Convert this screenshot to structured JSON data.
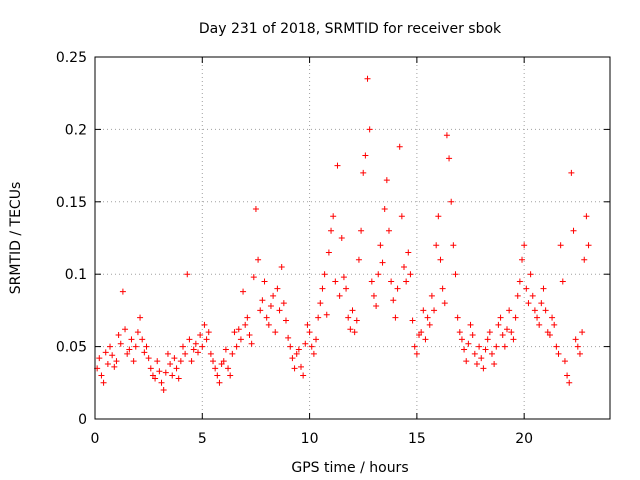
{
  "chart_data": {
    "type": "scatter",
    "title": "Day 231 of 2018, SRMTID for receiver sbok",
    "xlabel": "GPS time / hours",
    "ylabel": "SRMTID / TECUs",
    "xlim": [
      0,
      24
    ],
    "ylim": [
      0,
      0.25
    ],
    "grid": true,
    "legend": "none",
    "marker": "+",
    "xticks": [
      0,
      5,
      10,
      15,
      20
    ],
    "xtick_labels": [
      "0",
      "5",
      "10",
      "15",
      "20"
    ],
    "yticks": [
      0,
      0.05,
      0.1,
      0.15,
      0.2,
      0.25
    ],
    "ytick_labels": [
      "0",
      "0.05",
      "0.1",
      "0.15",
      "0.2",
      "0.25"
    ],
    "colors": {
      "series": "#ff0000",
      "grid": "#a0a0a0",
      "axis": "#000000"
    },
    "series": [
      {
        "name": "SRMTID",
        "points": [
          [
            0.1,
            0.035
          ],
          [
            0.2,
            0.042
          ],
          [
            0.3,
            0.03
          ],
          [
            0.4,
            0.025
          ],
          [
            0.5,
            0.046
          ],
          [
            0.6,
            0.038
          ],
          [
            0.7,
            0.05
          ],
          [
            0.8,
            0.044
          ],
          [
            0.9,
            0.036
          ],
          [
            1.0,
            0.04
          ],
          [
            1.1,
            0.058
          ],
          [
            1.2,
            0.052
          ],
          [
            1.3,
            0.088
          ],
          [
            1.4,
            0.062
          ],
          [
            1.5,
            0.045
          ],
          [
            1.6,
            0.048
          ],
          [
            1.7,
            0.055
          ],
          [
            1.8,
            0.04
          ],
          [
            1.9,
            0.05
          ],
          [
            2.0,
            0.06
          ],
          [
            2.1,
            0.07
          ],
          [
            2.2,
            0.055
          ],
          [
            2.3,
            0.046
          ],
          [
            2.4,
            0.05
          ],
          [
            2.5,
            0.042
          ],
          [
            2.6,
            0.035
          ],
          [
            2.7,
            0.03
          ],
          [
            2.8,
            0.028
          ],
          [
            2.9,
            0.04
          ],
          [
            3.0,
            0.033
          ],
          [
            3.1,
            0.025
          ],
          [
            3.2,
            0.02
          ],
          [
            3.3,
            0.032
          ],
          [
            3.4,
            0.045
          ],
          [
            3.5,
            0.038
          ],
          [
            3.6,
            0.03
          ],
          [
            3.7,
            0.042
          ],
          [
            3.8,
            0.035
          ],
          [
            3.9,
            0.028
          ],
          [
            4.0,
            0.04
          ],
          [
            4.1,
            0.05
          ],
          [
            4.2,
            0.045
          ],
          [
            4.3,
            0.1
          ],
          [
            4.4,
            0.055
          ],
          [
            4.5,
            0.04
          ],
          [
            4.6,
            0.048
          ],
          [
            4.7,
            0.052
          ],
          [
            4.8,
            0.046
          ],
          [
            4.9,
            0.058
          ],
          [
            5.0,
            0.05
          ],
          [
            5.1,
            0.065
          ],
          [
            5.2,
            0.055
          ],
          [
            5.3,
            0.06
          ],
          [
            5.4,
            0.045
          ],
          [
            5.5,
            0.04
          ],
          [
            5.6,
            0.035
          ],
          [
            5.7,
            0.03
          ],
          [
            5.8,
            0.025
          ],
          [
            5.9,
            0.038
          ],
          [
            6.0,
            0.04
          ],
          [
            6.1,
            0.048
          ],
          [
            6.2,
            0.035
          ],
          [
            6.3,
            0.03
          ],
          [
            6.4,
            0.045
          ],
          [
            6.5,
            0.06
          ],
          [
            6.6,
            0.05
          ],
          [
            6.7,
            0.062
          ],
          [
            6.8,
            0.055
          ],
          [
            6.9,
            0.088
          ],
          [
            7.0,
            0.065
          ],
          [
            7.1,
            0.07
          ],
          [
            7.2,
            0.058
          ],
          [
            7.3,
            0.052
          ],
          [
            7.4,
            0.098
          ],
          [
            7.5,
            0.145
          ],
          [
            7.6,
            0.11
          ],
          [
            7.7,
            0.075
          ],
          [
            7.8,
            0.082
          ],
          [
            7.9,
            0.095
          ],
          [
            8.0,
            0.07
          ],
          [
            8.1,
            0.065
          ],
          [
            8.2,
            0.078
          ],
          [
            8.3,
            0.085
          ],
          [
            8.4,
            0.06
          ],
          [
            8.5,
            0.09
          ],
          [
            8.6,
            0.075
          ],
          [
            8.7,
            0.105
          ],
          [
            8.8,
            0.08
          ],
          [
            8.9,
            0.068
          ],
          [
            9.0,
            0.056
          ],
          [
            9.1,
            0.05
          ],
          [
            9.2,
            0.042
          ],
          [
            9.3,
            0.035
          ],
          [
            9.4,
            0.045
          ],
          [
            9.5,
            0.048
          ],
          [
            9.6,
            0.036
          ],
          [
            9.7,
            0.03
          ],
          [
            9.8,
            0.052
          ],
          [
            9.9,
            0.065
          ],
          [
            10.0,
            0.06
          ],
          [
            10.1,
            0.05
          ],
          [
            10.2,
            0.045
          ],
          [
            10.3,
            0.055
          ],
          [
            10.4,
            0.07
          ],
          [
            10.5,
            0.08
          ],
          [
            10.6,
            0.09
          ],
          [
            10.7,
            0.1
          ],
          [
            10.8,
            0.072
          ],
          [
            10.9,
            0.115
          ],
          [
            11.0,
            0.13
          ],
          [
            11.1,
            0.14
          ],
          [
            11.2,
            0.095
          ],
          [
            11.3,
            0.175
          ],
          [
            11.4,
            0.085
          ],
          [
            11.5,
            0.125
          ],
          [
            11.6,
            0.098
          ],
          [
            11.7,
            0.09
          ],
          [
            11.8,
            0.07
          ],
          [
            11.9,
            0.062
          ],
          [
            12.0,
            0.075
          ],
          [
            12.1,
            0.06
          ],
          [
            12.2,
            0.068
          ],
          [
            12.3,
            0.11
          ],
          [
            12.4,
            0.13
          ],
          [
            12.5,
            0.17
          ],
          [
            12.6,
            0.182
          ],
          [
            12.7,
            0.235
          ],
          [
            12.8,
            0.2
          ],
          [
            12.9,
            0.095
          ],
          [
            13.0,
            0.085
          ],
          [
            13.1,
            0.078
          ],
          [
            13.2,
            0.1
          ],
          [
            13.3,
            0.12
          ],
          [
            13.4,
            0.108
          ],
          [
            13.5,
            0.145
          ],
          [
            13.6,
            0.165
          ],
          [
            13.7,
            0.13
          ],
          [
            13.8,
            0.095
          ],
          [
            13.9,
            0.082
          ],
          [
            14.0,
            0.07
          ],
          [
            14.1,
            0.09
          ],
          [
            14.2,
            0.188
          ],
          [
            14.3,
            0.14
          ],
          [
            14.4,
            0.105
          ],
          [
            14.5,
            0.095
          ],
          [
            14.6,
            0.115
          ],
          [
            14.7,
            0.1
          ],
          [
            14.8,
            0.068
          ],
          [
            14.9,
            0.05
          ],
          [
            15.0,
            0.045
          ],
          [
            15.1,
            0.058
          ],
          [
            15.2,
            0.06
          ],
          [
            15.3,
            0.075
          ],
          [
            15.4,
            0.055
          ],
          [
            15.5,
            0.07
          ],
          [
            15.6,
            0.065
          ],
          [
            15.7,
            0.085
          ],
          [
            15.8,
            0.075
          ],
          [
            15.9,
            0.12
          ],
          [
            16.0,
            0.14
          ],
          [
            16.1,
            0.11
          ],
          [
            16.2,
            0.09
          ],
          [
            16.3,
            0.08
          ],
          [
            16.4,
            0.196
          ],
          [
            16.5,
            0.18
          ],
          [
            16.6,
            0.15
          ],
          [
            16.7,
            0.12
          ],
          [
            16.8,
            0.1
          ],
          [
            16.9,
            0.07
          ],
          [
            17.0,
            0.06
          ],
          [
            17.1,
            0.055
          ],
          [
            17.2,
            0.048
          ],
          [
            17.3,
            0.04
          ],
          [
            17.4,
            0.052
          ],
          [
            17.5,
            0.065
          ],
          [
            17.6,
            0.058
          ],
          [
            17.7,
            0.045
          ],
          [
            17.8,
            0.038
          ],
          [
            17.9,
            0.05
          ],
          [
            18.0,
            0.042
          ],
          [
            18.1,
            0.035
          ],
          [
            18.2,
            0.048
          ],
          [
            18.3,
            0.055
          ],
          [
            18.4,
            0.06
          ],
          [
            18.5,
            0.045
          ],
          [
            18.6,
            0.038
          ],
          [
            18.7,
            0.05
          ],
          [
            18.8,
            0.065
          ],
          [
            18.9,
            0.07
          ],
          [
            19.0,
            0.058
          ],
          [
            19.1,
            0.05
          ],
          [
            19.2,
            0.062
          ],
          [
            19.3,
            0.075
          ],
          [
            19.4,
            0.06
          ],
          [
            19.5,
            0.055
          ],
          [
            19.6,
            0.07
          ],
          [
            19.7,
            0.085
          ],
          [
            19.8,
            0.095
          ],
          [
            19.9,
            0.11
          ],
          [
            20.0,
            0.12
          ],
          [
            20.1,
            0.09
          ],
          [
            20.2,
            0.08
          ],
          [
            20.3,
            0.1
          ],
          [
            20.4,
            0.085
          ],
          [
            20.5,
            0.075
          ],
          [
            20.6,
            0.07
          ],
          [
            20.7,
            0.065
          ],
          [
            20.8,
            0.08
          ],
          [
            20.9,
            0.09
          ],
          [
            21.0,
            0.075
          ],
          [
            21.1,
            0.06
          ],
          [
            21.2,
            0.058
          ],
          [
            21.3,
            0.07
          ],
          [
            21.4,
            0.065
          ],
          [
            21.5,
            0.05
          ],
          [
            21.6,
            0.045
          ],
          [
            21.7,
            0.12
          ],
          [
            21.8,
            0.095
          ],
          [
            21.9,
            0.04
          ],
          [
            22.0,
            0.03
          ],
          [
            22.1,
            0.025
          ],
          [
            22.2,
            0.17
          ],
          [
            22.3,
            0.13
          ],
          [
            22.4,
            0.055
          ],
          [
            22.5,
            0.05
          ],
          [
            22.6,
            0.045
          ],
          [
            22.7,
            0.06
          ],
          [
            22.8,
            0.11
          ],
          [
            22.9,
            0.14
          ],
          [
            23.0,
            0.12
          ]
        ]
      }
    ]
  }
}
